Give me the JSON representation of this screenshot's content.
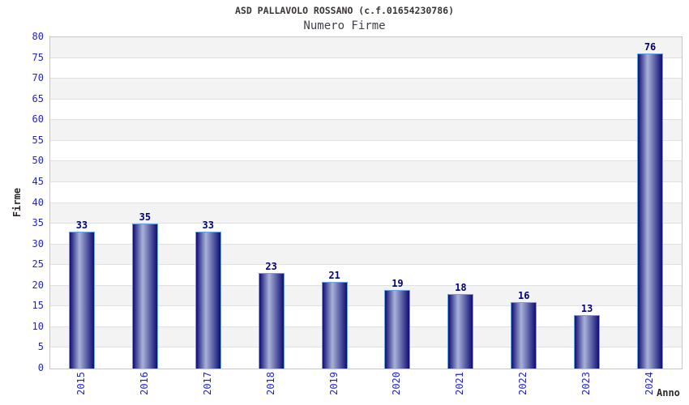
{
  "title": "ASD PALLAVOLO ROSSANO (c.f.01654230786)",
  "subtitle": "Numero Firme",
  "chart_data": {
    "type": "bar",
    "categories": [
      "2015",
      "2016",
      "2017",
      "2018",
      "2019",
      "2020",
      "2021",
      "2022",
      "2023",
      "2024"
    ],
    "values": [
      33,
      35,
      33,
      23,
      21,
      19,
      18,
      16,
      13,
      76
    ],
    "title": "ASD PALLAVOLO ROSSANO (c.f.01654230786)",
    "subtitle": "Numero Firme",
    "xlabel": "Anno",
    "ylabel": "Firme",
    "ylim": [
      0,
      80
    ],
    "ytick_step": 5,
    "ytick_labels": [
      "0",
      "5",
      "10",
      "15",
      "20",
      "25",
      "30",
      "35",
      "40",
      "45",
      "50",
      "55",
      "60",
      "65",
      "70",
      "75",
      "80"
    ],
    "legend": null,
    "grid": "alternating-horizontal-bands",
    "colors": {
      "axis_tick_label": "#2323cc",
      "bar_value_label": "#000080",
      "bar_dark": "#0e0e74",
      "bar_light": "#a9b2d8",
      "bar_border": "#6aa2e2",
      "band_gray": "#f3f3f3",
      "band_white": "#ffffff",
      "grid_line": "#e0e0e0",
      "axis_line": "#c6c6c6",
      "title_text": "#3a3434",
      "subtitle_text": "#3f3f4d"
    }
  }
}
